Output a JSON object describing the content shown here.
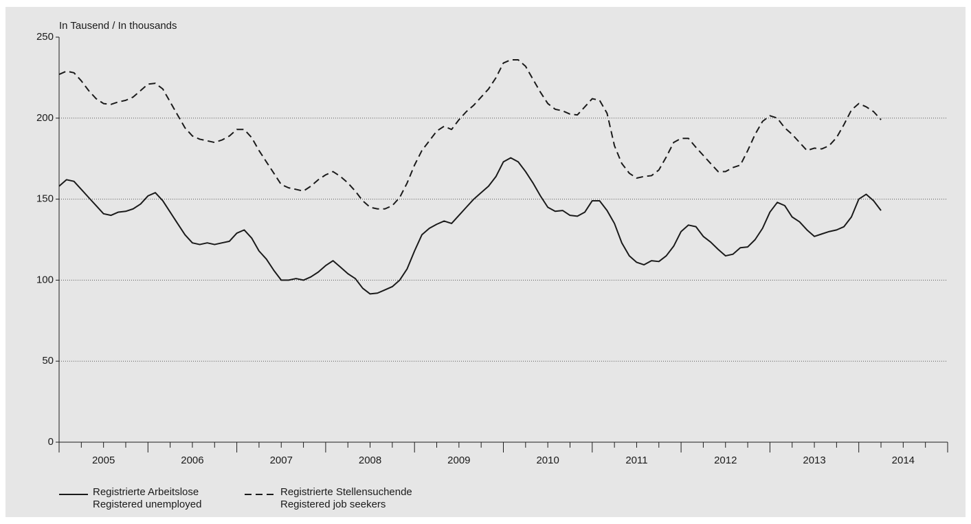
{
  "chart_data": {
    "type": "line",
    "y_label": "In Tausend / In thousands",
    "x": [
      2005,
      2005.083,
      2005.167,
      2005.25,
      2005.333,
      2005.417,
      2005.5,
      2005.583,
      2005.667,
      2005.75,
      2005.833,
      2005.917,
      2006,
      2006.083,
      2006.167,
      2006.25,
      2006.333,
      2006.417,
      2006.5,
      2006.583,
      2006.667,
      2006.75,
      2006.833,
      2006.917,
      2007,
      2007.083,
      2007.167,
      2007.25,
      2007.333,
      2007.417,
      2007.5,
      2007.583,
      2007.667,
      2007.75,
      2007.833,
      2007.917,
      2008,
      2008.083,
      2008.167,
      2008.25,
      2008.333,
      2008.417,
      2008.5,
      2008.583,
      2008.667,
      2008.75,
      2008.833,
      2008.917,
      2009,
      2009.083,
      2009.167,
      2009.25,
      2009.333,
      2009.417,
      2009.5,
      2009.583,
      2009.667,
      2009.75,
      2009.833,
      2009.917,
      2010,
      2010.083,
      2010.167,
      2010.25,
      2010.333,
      2010.417,
      2010.5,
      2010.583,
      2010.667,
      2010.75,
      2010.833,
      2010.917,
      2011,
      2011.083,
      2011.167,
      2011.25,
      2011.333,
      2011.417,
      2011.5,
      2011.583,
      2011.667,
      2011.75,
      2011.833,
      2011.917,
      2012,
      2012.083,
      2012.167,
      2012.25,
      2012.333,
      2012.417,
      2012.5,
      2012.583,
      2012.667,
      2012.75,
      2012.833,
      2012.917,
      2013,
      2013.083,
      2013.167,
      2013.25,
      2013.333,
      2013.417,
      2013.5,
      2013.583,
      2013.667,
      2013.75,
      2013.833,
      2013.917,
      2014,
      2014.083,
      2014.167,
      2014.25
    ],
    "series": [
      {
        "name": "Registrierte Arbeitslose\nRegistered unemployed",
        "color": "#1a1a1a",
        "dash": false,
        "values": [
          158,
          162,
          161,
          156,
          151,
          146,
          141,
          140,
          142,
          142.5,
          144,
          147,
          152,
          154,
          149,
          142,
          135,
          128,
          123,
          122,
          123,
          122,
          123,
          124,
          129,
          131,
          126,
          118,
          113,
          106,
          100,
          100,
          101,
          100,
          102,
          105,
          109,
          112,
          108,
          104,
          101,
          95,
          91.5,
          92,
          94,
          96,
          100,
          107,
          118,
          128,
          132,
          134.5,
          136.5,
          135,
          140,
          145,
          150,
          154,
          158,
          164,
          173,
          175.5,
          173,
          167,
          160,
          152,
          145,
          142.5,
          143,
          140,
          139.5,
          142,
          149,
          149,
          143,
          135,
          123,
          115,
          111,
          109.5,
          112,
          111.5,
          115,
          121,
          130,
          134,
          133,
          127,
          123.5,
          119,
          115,
          116,
          120,
          120.5,
          125,
          132,
          142,
          148,
          146,
          139,
          136,
          131,
          127,
          128.5,
          130,
          131,
          133,
          139,
          150,
          153,
          149,
          143
        ]
      },
      {
        "name": "Registrierte Stellensuchende\nRegistered job seekers",
        "color": "#1a1a1a",
        "dash": true,
        "values": [
          227,
          229,
          228,
          223,
          217,
          212,
          209,
          208.5,
          210,
          211,
          213,
          217,
          221,
          221.5,
          218,
          210,
          202,
          194,
          189,
          187,
          186,
          185,
          186.5,
          189,
          193,
          193,
          188,
          180,
          173,
          166,
          159,
          157,
          156,
          155,
          158,
          162,
          165,
          167,
          164,
          160,
          155,
          149,
          145,
          144,
          144,
          146,
          151,
          160,
          171,
          180,
          186,
          192,
          195,
          193,
          199,
          204,
          208,
          213,
          218,
          225,
          234,
          236,
          236,
          232,
          224,
          216,
          209,
          205.5,
          204.5,
          202.5,
          202,
          207,
          212,
          211,
          203,
          183,
          172,
          166,
          163,
          164,
          164.5,
          168,
          176,
          185,
          187.5,
          187.5,
          182,
          177,
          172,
          167,
          167,
          169.5,
          171,
          180,
          190,
          198,
          201.5,
          200,
          194,
          190,
          185,
          180,
          181.5,
          181,
          183,
          188,
          196,
          205,
          209,
          207,
          204,
          199
        ]
      }
    ],
    "xlim": [
      2005,
      2015
    ],
    "xticks": [
      {
        "value": 2005,
        "label": "2005"
      },
      {
        "value": 2006,
        "label": "2006"
      },
      {
        "value": 2007,
        "label": "2007"
      },
      {
        "value": 2008,
        "label": "2008"
      },
      {
        "value": 2009,
        "label": "2009"
      },
      {
        "value": 2010,
        "label": "2010"
      },
      {
        "value": 2011,
        "label": "2011"
      },
      {
        "value": 2012,
        "label": "2012"
      },
      {
        "value": 2013,
        "label": "2013"
      },
      {
        "value": 2014,
        "label": "2014"
      }
    ],
    "ylim": [
      0,
      250
    ],
    "yticks": [
      0,
      50,
      100,
      150,
      200,
      250
    ],
    "grid": true
  }
}
